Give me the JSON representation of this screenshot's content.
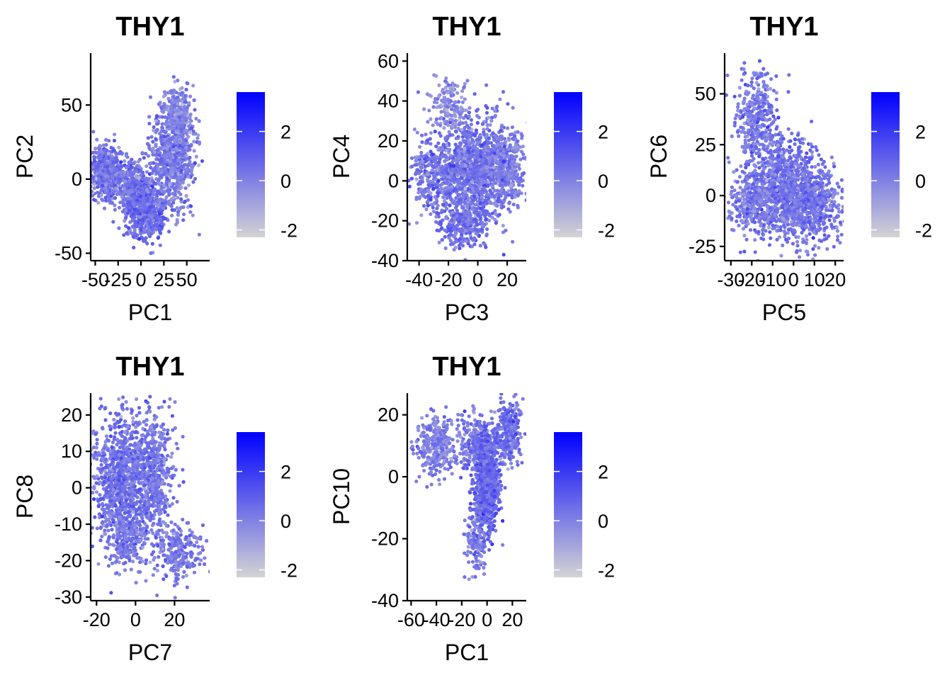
{
  "figure": {
    "background": "#ffffff",
    "point_color_low": "#d3d3d3",
    "point_color_high": "#0000ff"
  },
  "chart_data": [
    {
      "type": "scatter",
      "title": "THY1",
      "xlabel": "PC1",
      "ylabel": "PC2",
      "xlim": [
        -55,
        75
      ],
      "ylim": [
        -55,
        85
      ],
      "x_ticks": [
        -50,
        -25,
        0,
        25,
        50
      ],
      "x_tick_labels": [
        "-50",
        "-25",
        "0",
        "25",
        "50"
      ],
      "y_ticks": [
        -50,
        0,
        50
      ],
      "y_tick_labels": [
        "-50",
        "0",
        "50"
      ],
      "legend": {
        "ticks": [
          -2,
          0,
          2
        ],
        "tick_labels": [
          "-2",
          "0",
          "2"
        ],
        "min": -2.3,
        "max": 3.6,
        "placement": "right"
      },
      "clusters": [
        {
          "cx": -40,
          "cy": 5,
          "sx": 8,
          "sy": 9,
          "n": 520,
          "e": 0.25
        },
        {
          "cx": -10,
          "cy": -5,
          "sx": 10,
          "sy": 10,
          "n": 380,
          "e": 0.35
        },
        {
          "cx": 5,
          "cy": -20,
          "sx": 11,
          "sy": 10,
          "n": 480,
          "e": 0.55
        },
        {
          "cx": 35,
          "cy": 15,
          "sx": 12,
          "sy": 17,
          "n": 760,
          "e": 0.15
        },
        {
          "cx": 42,
          "cy": 45,
          "sx": 7,
          "sy": 8,
          "n": 170,
          "e": -0.1
        }
      ]
    },
    {
      "type": "scatter",
      "title": "THY1",
      "xlabel": "PC3",
      "ylabel": "PC4",
      "xlim": [
        -48,
        33
      ],
      "ylim": [
        -40,
        64
      ],
      "x_ticks": [
        -40,
        -20,
        0,
        20
      ],
      "x_tick_labels": [
        "-40",
        "-20",
        "0",
        "20"
      ],
      "y_ticks": [
        -40,
        -20,
        0,
        20,
        40,
        60
      ],
      "y_tick_labels": [
        "-40",
        "-20",
        "0",
        "20",
        "40",
        "60"
      ],
      "legend": {
        "ticks": [
          -2,
          0,
          2
        ],
        "tick_labels": [
          "-2",
          "0",
          "2"
        ],
        "min": -2.3,
        "max": 3.6,
        "placement": "right"
      },
      "clusters": [
        {
          "cx": -5,
          "cy": 5,
          "sx": 15,
          "sy": 13,
          "n": 1300,
          "e": 0.35
        },
        {
          "cx": -20,
          "cy": 38,
          "sx": 6,
          "sy": 7,
          "n": 140,
          "e": -0.3
        },
        {
          "cx": -10,
          "cy": -22,
          "sx": 8,
          "sy": 6,
          "n": 220,
          "e": 0.45
        },
        {
          "cx": 18,
          "cy": 8,
          "sx": 7,
          "sy": 9,
          "n": 320,
          "e": 0.1
        },
        {
          "cx": -35,
          "cy": 2,
          "sx": 5,
          "sy": 7,
          "n": 130,
          "e": 0.3
        }
      ]
    },
    {
      "type": "scatter",
      "title": "THY1",
      "xlabel": "PC5",
      "ylabel": "PC6",
      "xlim": [
        -33,
        24
      ],
      "ylim": [
        -32,
        70
      ],
      "x_ticks": [
        -30,
        -20,
        -10,
        0,
        10,
        20
      ],
      "x_tick_labels": [
        "-30",
        "-20",
        "-10",
        "0",
        "10",
        "20"
      ],
      "y_ticks": [
        -25,
        0,
        25,
        50
      ],
      "y_tick_labels": [
        "-25",
        "0",
        "25",
        "50"
      ],
      "legend": {
        "ticks": [
          -2,
          0,
          2
        ],
        "tick_labels": [
          "-2",
          "0",
          "2"
        ],
        "min": -2.3,
        "max": 3.6,
        "placement": "right"
      },
      "clusters": [
        {
          "cx": -18,
          "cy": 40,
          "sx": 5,
          "sy": 10,
          "n": 320,
          "e": 0.25
        },
        {
          "cx": -5,
          "cy": 5,
          "sx": 10,
          "sy": 12,
          "n": 880,
          "e": 0.45
        },
        {
          "cx": 8,
          "cy": -5,
          "sx": 8,
          "sy": 9,
          "n": 560,
          "e": 0.3
        },
        {
          "cx": -20,
          "cy": -3,
          "sx": 6,
          "sy": 6,
          "n": 260,
          "e": 0.1
        }
      ]
    },
    {
      "type": "scatter",
      "title": "THY1",
      "xlabel": "PC7",
      "ylabel": "PC8",
      "xlim": [
        -23,
        38
      ],
      "ylim": [
        -31,
        26
      ],
      "x_ticks": [
        -20,
        0,
        20
      ],
      "x_tick_labels": [
        "-20",
        "0",
        "20"
      ],
      "y_ticks": [
        -30,
        -20,
        -10,
        0,
        10,
        20
      ],
      "y_tick_labels": [
        "-30",
        "-20",
        "-10",
        "0",
        "10",
        "20"
      ],
      "legend": {
        "ticks": [
          -2,
          0,
          2
        ],
        "tick_labels": [
          "-2",
          "0",
          "2"
        ],
        "min": -2.3,
        "max": 3.6,
        "placement": "right"
      },
      "clusters": [
        {
          "cx": -8,
          "cy": 2,
          "sx": 7,
          "sy": 9,
          "n": 850,
          "e": 0.4
        },
        {
          "cx": 8,
          "cy": 3,
          "sx": 6,
          "sy": 8,
          "n": 620,
          "e": 0.35
        },
        {
          "cx": -5,
          "cy": -15,
          "sx": 5,
          "sy": 4,
          "n": 220,
          "e": 0.15
        },
        {
          "cx": 22,
          "cy": -18,
          "sx": 6,
          "sy": 4,
          "n": 230,
          "e": 0.1
        }
      ]
    },
    {
      "type": "scatter",
      "title": "THY1",
      "xlabel": "PC1",
      "ylabel": "PC10",
      "xlim": [
        -63,
        31
      ],
      "ylim": [
        -40,
        27
      ],
      "x_ticks": [
        -60,
        -40,
        -20,
        0,
        20
      ],
      "x_tick_labels": [
        "-60",
        "-40",
        "-20",
        "0",
        "20"
      ],
      "y_ticks": [
        -40,
        -20,
        0,
        20
      ],
      "y_tick_labels": [
        "-40",
        "-20",
        "0",
        "20"
      ],
      "legend": {
        "ticks": [
          -2,
          0,
          2
        ],
        "tick_labels": [
          "-2",
          "0",
          "2"
        ],
        "min": -2.3,
        "max": 3.6,
        "placement": "right"
      },
      "clusters": [
        {
          "cx": -40,
          "cy": 10,
          "sx": 8,
          "sy": 5,
          "n": 320,
          "e": 0.0
        },
        {
          "cx": -5,
          "cy": 10,
          "sx": 9,
          "sy": 5,
          "n": 420,
          "e": 0.3
        },
        {
          "cx": 0,
          "cy": -3,
          "sx": 5,
          "sy": 7,
          "n": 620,
          "e": 0.75
        },
        {
          "cx": -8,
          "cy": -20,
          "sx": 4,
          "sy": 6,
          "n": 150,
          "e": 0.3
        },
        {
          "cx": 18,
          "cy": 15,
          "sx": 5,
          "sy": 5,
          "n": 220,
          "e": 0.5
        }
      ]
    }
  ]
}
